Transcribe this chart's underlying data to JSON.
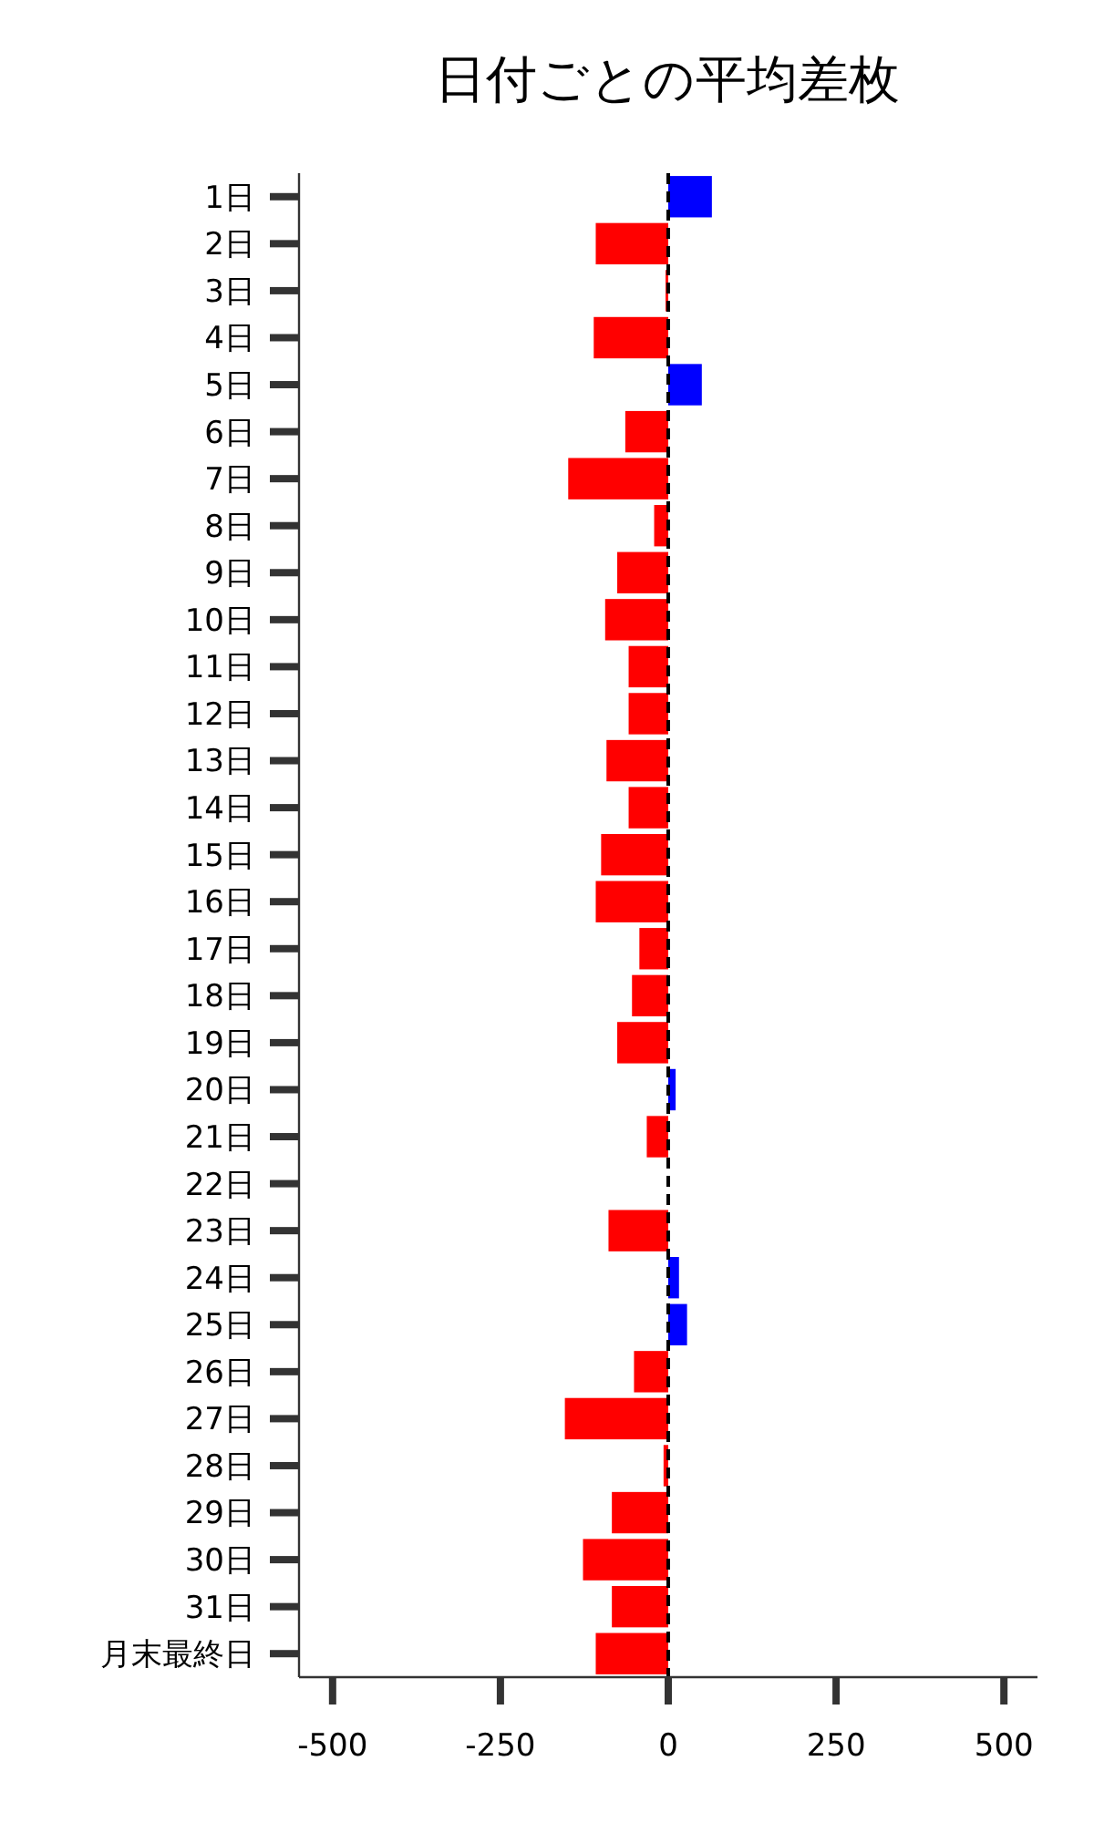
{
  "chart_data": {
    "type": "bar",
    "orientation": "horizontal",
    "title": "日付ごとの平均差枚",
    "categories": [
      "1日",
      "2日",
      "3日",
      "4日",
      "5日",
      "6日",
      "7日",
      "8日",
      "9日",
      "10日",
      "11日",
      "12日",
      "13日",
      "14日",
      "15日",
      "16日",
      "17日",
      "18日",
      "19日",
      "20日",
      "21日",
      "22日",
      "23日",
      "24日",
      "25日",
      "26日",
      "27日",
      "28日",
      "29日",
      "30日",
      "31日",
      "月末最終日"
    ],
    "values": [
      65,
      -108,
      -4,
      -111,
      50,
      -64,
      -149,
      -21,
      -76,
      -94,
      -59,
      -59,
      -92,
      -59,
      -100,
      -108,
      -43,
      -54,
      -76,
      11,
      -32,
      0,
      -89,
      16,
      28,
      -51,
      -154,
      -7,
      -84,
      -127,
      -84,
      -108
    ],
    "colors": [
      "#0000ff",
      "#ff0000",
      "#ff0000",
      "#ff0000",
      "#0000ff",
      "#ff0000",
      "#ff0000",
      "#ff0000",
      "#ff0000",
      "#ff0000",
      "#ff0000",
      "#ff0000",
      "#ff0000",
      "#ff0000",
      "#ff0000",
      "#ff0000",
      "#ff0000",
      "#ff0000",
      "#ff0000",
      "#0000ff",
      "#ff0000",
      "#ff0000",
      "#ff0000",
      "#0000ff",
      "#0000ff",
      "#ff0000",
      "#ff0000",
      "#ff0000",
      "#ff0000",
      "#ff0000",
      "#ff0000",
      "#ff0000"
    ],
    "xlim": [
      -550,
      550
    ],
    "xticks": [
      -500,
      -250,
      0,
      250,
      500
    ],
    "ref_lines": [
      {
        "axis": "x",
        "value": 0,
        "color": "#000000",
        "line_style": "dashed"
      }
    ],
    "grid": false
  }
}
